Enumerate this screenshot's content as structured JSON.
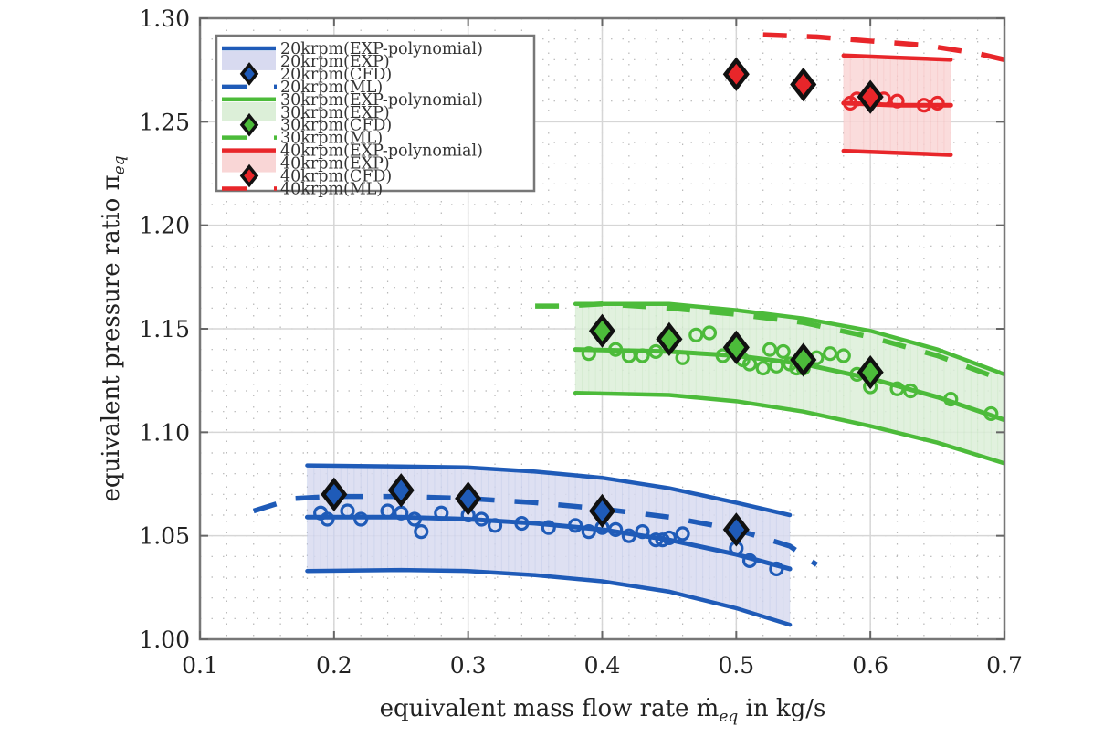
{
  "chart_data": {
    "type": "line",
    "title": "",
    "xlabel": "equivalent mass flow rate ṁ",
    "xlabel_sub": "eq",
    "xlabel_suffix": " in kg/s",
    "ylabel": "equivalent pressure ratio π",
    "ylabel_sub": "eq",
    "xlim": [
      0.1,
      0.7
    ],
    "ylim": [
      1.0,
      1.3
    ],
    "xticks": [
      0.1,
      0.2,
      0.3,
      0.4,
      0.5,
      0.6,
      0.7
    ],
    "xtick_labels": [
      "0.1",
      "0.2",
      "0.3",
      "0.4",
      "0.5",
      "0.6",
      "0.7"
    ],
    "yticks": [
      1.0,
      1.05,
      1.1,
      1.15,
      1.2,
      1.25,
      1.3
    ],
    "ytick_labels": [
      "1.00",
      "1.05",
      "1.10",
      "1.15",
      "1.20",
      "1.25",
      "1.30"
    ],
    "grid": true,
    "minor_grid": "dotted",
    "legend_position": "top-left",
    "colors": {
      "20krpm": "#1f5bb8",
      "20krpm_fill": "#d8daf0",
      "30krpm": "#4cbb3a",
      "30krpm_fill": "#dcefd8",
      "40krpm": "#e8262a",
      "40krpm_fill": "#f9d6d6",
      "marker_edge": "#111111"
    },
    "legend": [
      {
        "label": "20krpm(EXP-polynomial)",
        "kind": "line",
        "color": "#1f5bb8"
      },
      {
        "label": "20krpm(EXP)",
        "kind": "band",
        "color": "#d8daf0"
      },
      {
        "label": "20krpm(CFD)",
        "kind": "diamond",
        "color": "#1f5bb8"
      },
      {
        "label": "20krpm(ML)",
        "kind": "dash",
        "color": "#1f5bb8"
      },
      {
        "label": "30krpm(EXP-polynomial)",
        "kind": "line",
        "color": "#4cbb3a"
      },
      {
        "label": "30krpm(EXP)",
        "kind": "band",
        "color": "#dcefd8"
      },
      {
        "label": "30krpm(CFD)",
        "kind": "diamond",
        "color": "#4cbb3a"
      },
      {
        "label": "30krpm(ML)",
        "kind": "dash",
        "color": "#4cbb3a"
      },
      {
        "label": "40krpm(EXP-polynomial)",
        "kind": "line",
        "color": "#e8262a"
      },
      {
        "label": "40krpm(EXP)",
        "kind": "band",
        "color": "#f9d6d6"
      },
      {
        "label": "40krpm(CFD)",
        "kind": "diamond",
        "color": "#e8262a"
      },
      {
        "label": "40krpm(ML)",
        "kind": "dash",
        "color": "#e8262a"
      }
    ],
    "series": [
      {
        "name": "20krpm",
        "color": "#1f5bb8",
        "fill": "#d8daf0",
        "band_upper": {
          "x": [
            0.18,
            0.25,
            0.3,
            0.35,
            0.4,
            0.45,
            0.5,
            0.54
          ],
          "y": [
            1.084,
            1.0835,
            1.083,
            1.081,
            1.078,
            1.073,
            1.066,
            1.06
          ]
        },
        "band_lower": {
          "x": [
            0.18,
            0.25,
            0.3,
            0.35,
            0.4,
            0.45,
            0.5,
            0.54
          ],
          "y": [
            1.033,
            1.0335,
            1.033,
            1.031,
            1.028,
            1.023,
            1.015,
            1.007
          ]
        },
        "exp_polynomial": {
          "x": [
            0.18,
            0.25,
            0.3,
            0.35,
            0.4,
            0.45,
            0.5,
            0.54
          ],
          "y": [
            1.059,
            1.059,
            1.058,
            1.056,
            1.053,
            1.048,
            1.041,
            1.034
          ]
        },
        "exp_points": {
          "x": [
            0.19,
            0.195,
            0.21,
            0.22,
            0.24,
            0.25,
            0.26,
            0.265,
            0.28,
            0.3,
            0.31,
            0.32,
            0.34,
            0.36,
            0.38,
            0.39,
            0.4,
            0.41,
            0.42,
            0.43,
            0.44,
            0.445,
            0.45,
            0.46,
            0.5,
            0.51,
            0.53
          ],
          "y": [
            1.061,
            1.058,
            1.062,
            1.058,
            1.062,
            1.061,
            1.058,
            1.052,
            1.061,
            1.06,
            1.058,
            1.055,
            1.056,
            1.054,
            1.055,
            1.052,
            1.054,
            1.053,
            1.05,
            1.052,
            1.048,
            1.048,
            1.049,
            1.051,
            1.044,
            1.038,
            1.034
          ]
        },
        "ml": {
          "x": [
            0.14,
            0.17,
            0.2,
            0.25,
            0.3,
            0.35,
            0.4,
            0.45,
            0.5,
            0.54,
            0.56
          ],
          "y": [
            1.062,
            1.068,
            1.069,
            1.069,
            1.068,
            1.066,
            1.063,
            1.059,
            1.053,
            1.045,
            1.036
          ]
        },
        "cfd": {
          "x": [
            0.2,
            0.25,
            0.3,
            0.4,
            0.5
          ],
          "y": [
            1.07,
            1.072,
            1.068,
            1.062,
            1.053
          ]
        }
      },
      {
        "name": "30krpm",
        "color": "#4cbb3a",
        "fill": "#dcefd8",
        "band_upper": {
          "x": [
            0.38,
            0.45,
            0.5,
            0.55,
            0.6,
            0.65,
            0.7
          ],
          "y": [
            1.162,
            1.162,
            1.159,
            1.155,
            1.149,
            1.14,
            1.128
          ]
        },
        "band_lower": {
          "x": [
            0.38,
            0.45,
            0.5,
            0.55,
            0.6,
            0.65,
            0.7
          ],
          "y": [
            1.119,
            1.118,
            1.115,
            1.11,
            1.103,
            1.095,
            1.085
          ]
        },
        "exp_polynomial": {
          "x": [
            0.38,
            0.45,
            0.5,
            0.55,
            0.6,
            0.65,
            0.7
          ],
          "y": [
            1.14,
            1.139,
            1.137,
            1.133,
            1.126,
            1.117,
            1.106
          ]
        },
        "exp_points": {
          "x": [
            0.39,
            0.41,
            0.42,
            0.43,
            0.44,
            0.46,
            0.47,
            0.48,
            0.49,
            0.5,
            0.505,
            0.51,
            0.52,
            0.525,
            0.53,
            0.535,
            0.54,
            0.545,
            0.55,
            0.56,
            0.57,
            0.58,
            0.59,
            0.6,
            0.62,
            0.63,
            0.66,
            0.69
          ],
          "y": [
            1.138,
            1.14,
            1.137,
            1.137,
            1.139,
            1.136,
            1.147,
            1.148,
            1.137,
            1.143,
            1.135,
            1.133,
            1.131,
            1.14,
            1.132,
            1.139,
            1.133,
            1.131,
            1.131,
            1.136,
            1.138,
            1.137,
            1.128,
            1.122,
            1.121,
            1.12,
            1.116,
            1.109
          ]
        },
        "ml": {
          "x": [
            0.35,
            0.37,
            0.4,
            0.45,
            0.5,
            0.55,
            0.6,
            0.65,
            0.7
          ],
          "y": [
            1.161,
            1.161,
            1.162,
            1.16,
            1.157,
            1.153,
            1.146,
            1.137,
            1.125
          ]
        },
        "cfd": {
          "x": [
            0.4,
            0.45,
            0.5,
            0.55,
            0.6
          ],
          "y": [
            1.149,
            1.145,
            1.141,
            1.135,
            1.129
          ]
        }
      },
      {
        "name": "40krpm",
        "color": "#e8262a",
        "fill": "#f9d6d6",
        "band_upper": {
          "x": [
            0.58,
            0.62,
            0.66
          ],
          "y": [
            1.282,
            1.281,
            1.28
          ]
        },
        "band_lower": {
          "x": [
            0.58,
            0.62,
            0.66
          ],
          "y": [
            1.236,
            1.235,
            1.234
          ]
        },
        "exp_polynomial": {
          "x": [
            0.58,
            0.62,
            0.66
          ],
          "y": [
            1.259,
            1.258,
            1.258
          ]
        },
        "exp_points": {
          "x": [
            0.585,
            0.59,
            0.6,
            0.61,
            0.62,
            0.64,
            0.65
          ],
          "y": [
            1.259,
            1.261,
            1.26,
            1.261,
            1.26,
            1.258,
            1.259
          ]
        },
        "ml": {
          "x": [
            0.52,
            0.56,
            0.6,
            0.64,
            0.68,
            0.7
          ],
          "y": [
            1.292,
            1.291,
            1.289,
            1.287,
            1.283,
            1.28
          ]
        },
        "cfd": {
          "x": [
            0.5,
            0.55,
            0.6
          ],
          "y": [
            1.273,
            1.268,
            1.262
          ]
        }
      }
    ]
  }
}
